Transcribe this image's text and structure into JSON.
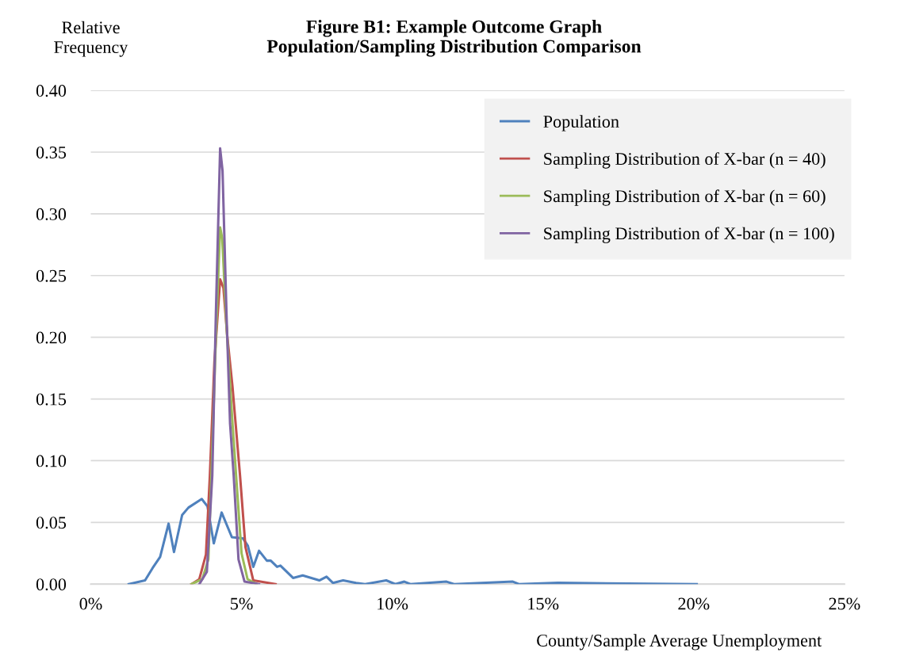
{
  "chart_data": {
    "type": "line",
    "title": "Figure B1: Example Outcome Graph\nPopulation/Sampling Distribution Comparison",
    "ylabel": "Relative\nFrequency",
    "xlabel": "County/Sample Average Unemployment",
    "xlim": [
      0,
      25
    ],
    "xticks": [
      {
        "value": 0,
        "label": "0%"
      },
      {
        "value": 5,
        "label": "5%"
      },
      {
        "value": 10,
        "label": "10%"
      },
      {
        "value": 15,
        "label": "15%"
      },
      {
        "value": 20,
        "label": "20%"
      },
      {
        "value": 25,
        "label": "25%"
      }
    ],
    "ylim": [
      0,
      0.4
    ],
    "yticks": [
      {
        "value": 0,
        "label": "0.00"
      },
      {
        "value": 0.05,
        "label": "0.05"
      },
      {
        "value": 0.1,
        "label": "0.10"
      },
      {
        "value": 0.15,
        "label": "0.15"
      },
      {
        "value": 0.2,
        "label": "0.20"
      },
      {
        "value": 0.25,
        "label": "0.25"
      },
      {
        "value": 0.3,
        "label": "0.30"
      },
      {
        "value": 0.35,
        "label": "0.35"
      },
      {
        "value": 0.4,
        "label": "0.40"
      }
    ],
    "grid": "y",
    "legend": "top right",
    "marker": "none",
    "line_style": "solid",
    "series": [
      {
        "name": "Population",
        "color": "#4f81bd",
        "x": [
          1.26,
          1.8,
          2.05,
          2.3,
          2.58,
          2.76,
          3.03,
          3.24,
          3.68,
          3.87,
          4.08,
          4.34,
          4.68,
          5.05,
          5.21,
          5.39,
          5.58,
          5.84,
          5.97,
          6.18,
          6.29,
          6.71,
          7.03,
          7.58,
          7.82,
          8.03,
          8.37,
          8.8,
          9.1,
          9.8,
          10.1,
          10.4,
          10.6,
          11.8,
          12.05,
          14.0,
          14.2,
          15.5,
          20.1
        ],
        "values": [
          0,
          0.003,
          0.013,
          0.022,
          0.049,
          0.026,
          0.056,
          0.062,
          0.069,
          0.063,
          0.033,
          0.058,
          0.038,
          0.037,
          0.031,
          0.014,
          0.027,
          0.019,
          0.019,
          0.014,
          0.015,
          0.005,
          0.007,
          0.003,
          0.006,
          0.001,
          0.003,
          0.001,
          0,
          0.003,
          0,
          0.002,
          0,
          0.002,
          0,
          0.002,
          0,
          0.001,
          0
        ]
      },
      {
        "name": "Sampling Distribution of X-bar (n = 40)",
        "color": "#c0504d",
        "x": [
          3.34,
          3.6,
          3.82,
          3.95,
          4.1,
          4.29,
          4.4,
          4.53,
          4.7,
          4.95,
          5.13,
          5.39,
          6.13
        ],
        "values": [
          0,
          0.004,
          0.024,
          0.088,
          0.18,
          0.247,
          0.24,
          0.2,
          0.16,
          0.088,
          0.03,
          0.003,
          0
        ]
      },
      {
        "name": "Sampling Distribution of X-bar (n = 60)",
        "color": "#9bbb59",
        "x": [
          3.34,
          3.7,
          3.9,
          4.0,
          4.15,
          4.29,
          4.36,
          4.5,
          4.7,
          4.82,
          5.0,
          5.2,
          5.5
        ],
        "values": [
          0,
          0.004,
          0.02,
          0.088,
          0.2,
          0.289,
          0.28,
          0.21,
          0.13,
          0.088,
          0.025,
          0.004,
          0
        ]
      },
      {
        "name": "Sampling Distribution of X-bar (n = 100)",
        "color": "#8064a2",
        "x": [
          3.6,
          3.85,
          4.03,
          4.15,
          4.29,
          4.37,
          4.5,
          4.62,
          4.74,
          4.9,
          5.1,
          5.58
        ],
        "values": [
          0,
          0.01,
          0.088,
          0.22,
          0.353,
          0.335,
          0.22,
          0.13,
          0.088,
          0.02,
          0.002,
          0
        ]
      }
    ]
  }
}
